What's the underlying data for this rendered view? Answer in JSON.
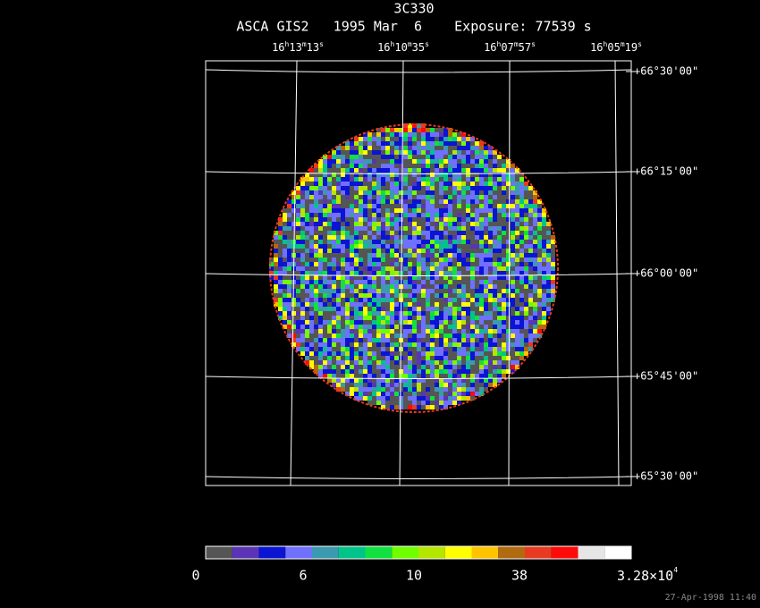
{
  "header": {
    "title": "3C330",
    "subtitle": "ASCA GIS2   1995 Mar  6    Exposure: 77539 s"
  },
  "ra_labels": [
    [
      "16",
      "h",
      "13",
      "m",
      "13",
      "s"
    ],
    [
      "16",
      "h",
      "10",
      "m",
      "35",
      "s"
    ],
    [
      "16",
      "h",
      "07",
      "m",
      "57",
      "s"
    ],
    [
      "16",
      "h",
      "05",
      "m",
      "19",
      "s"
    ]
  ],
  "dec_labels": [
    "+66°30'00\"",
    "+66°15'00\"",
    "+66°00'00\"",
    "+65°45'00\"",
    "+65°30'00\""
  ],
  "colorbar": {
    "colors": [
      "#555555",
      "#5a34b4",
      "#0a14d2",
      "#7070ff",
      "#3a9ab0",
      "#00c48a",
      "#10e040",
      "#70ff00",
      "#b4e600",
      "#ffff00",
      "#ffc400",
      "#b06a10",
      "#e83a20",
      "#ff0a0a",
      "#e6e6e6",
      "#ffffff"
    ],
    "labels": [
      "0",
      "6",
      "10",
      "38"
    ],
    "max_label": {
      "base": "3.28×10",
      "exponent": "4"
    }
  },
  "timestamp": "27-Apr-1998 11:40"
}
